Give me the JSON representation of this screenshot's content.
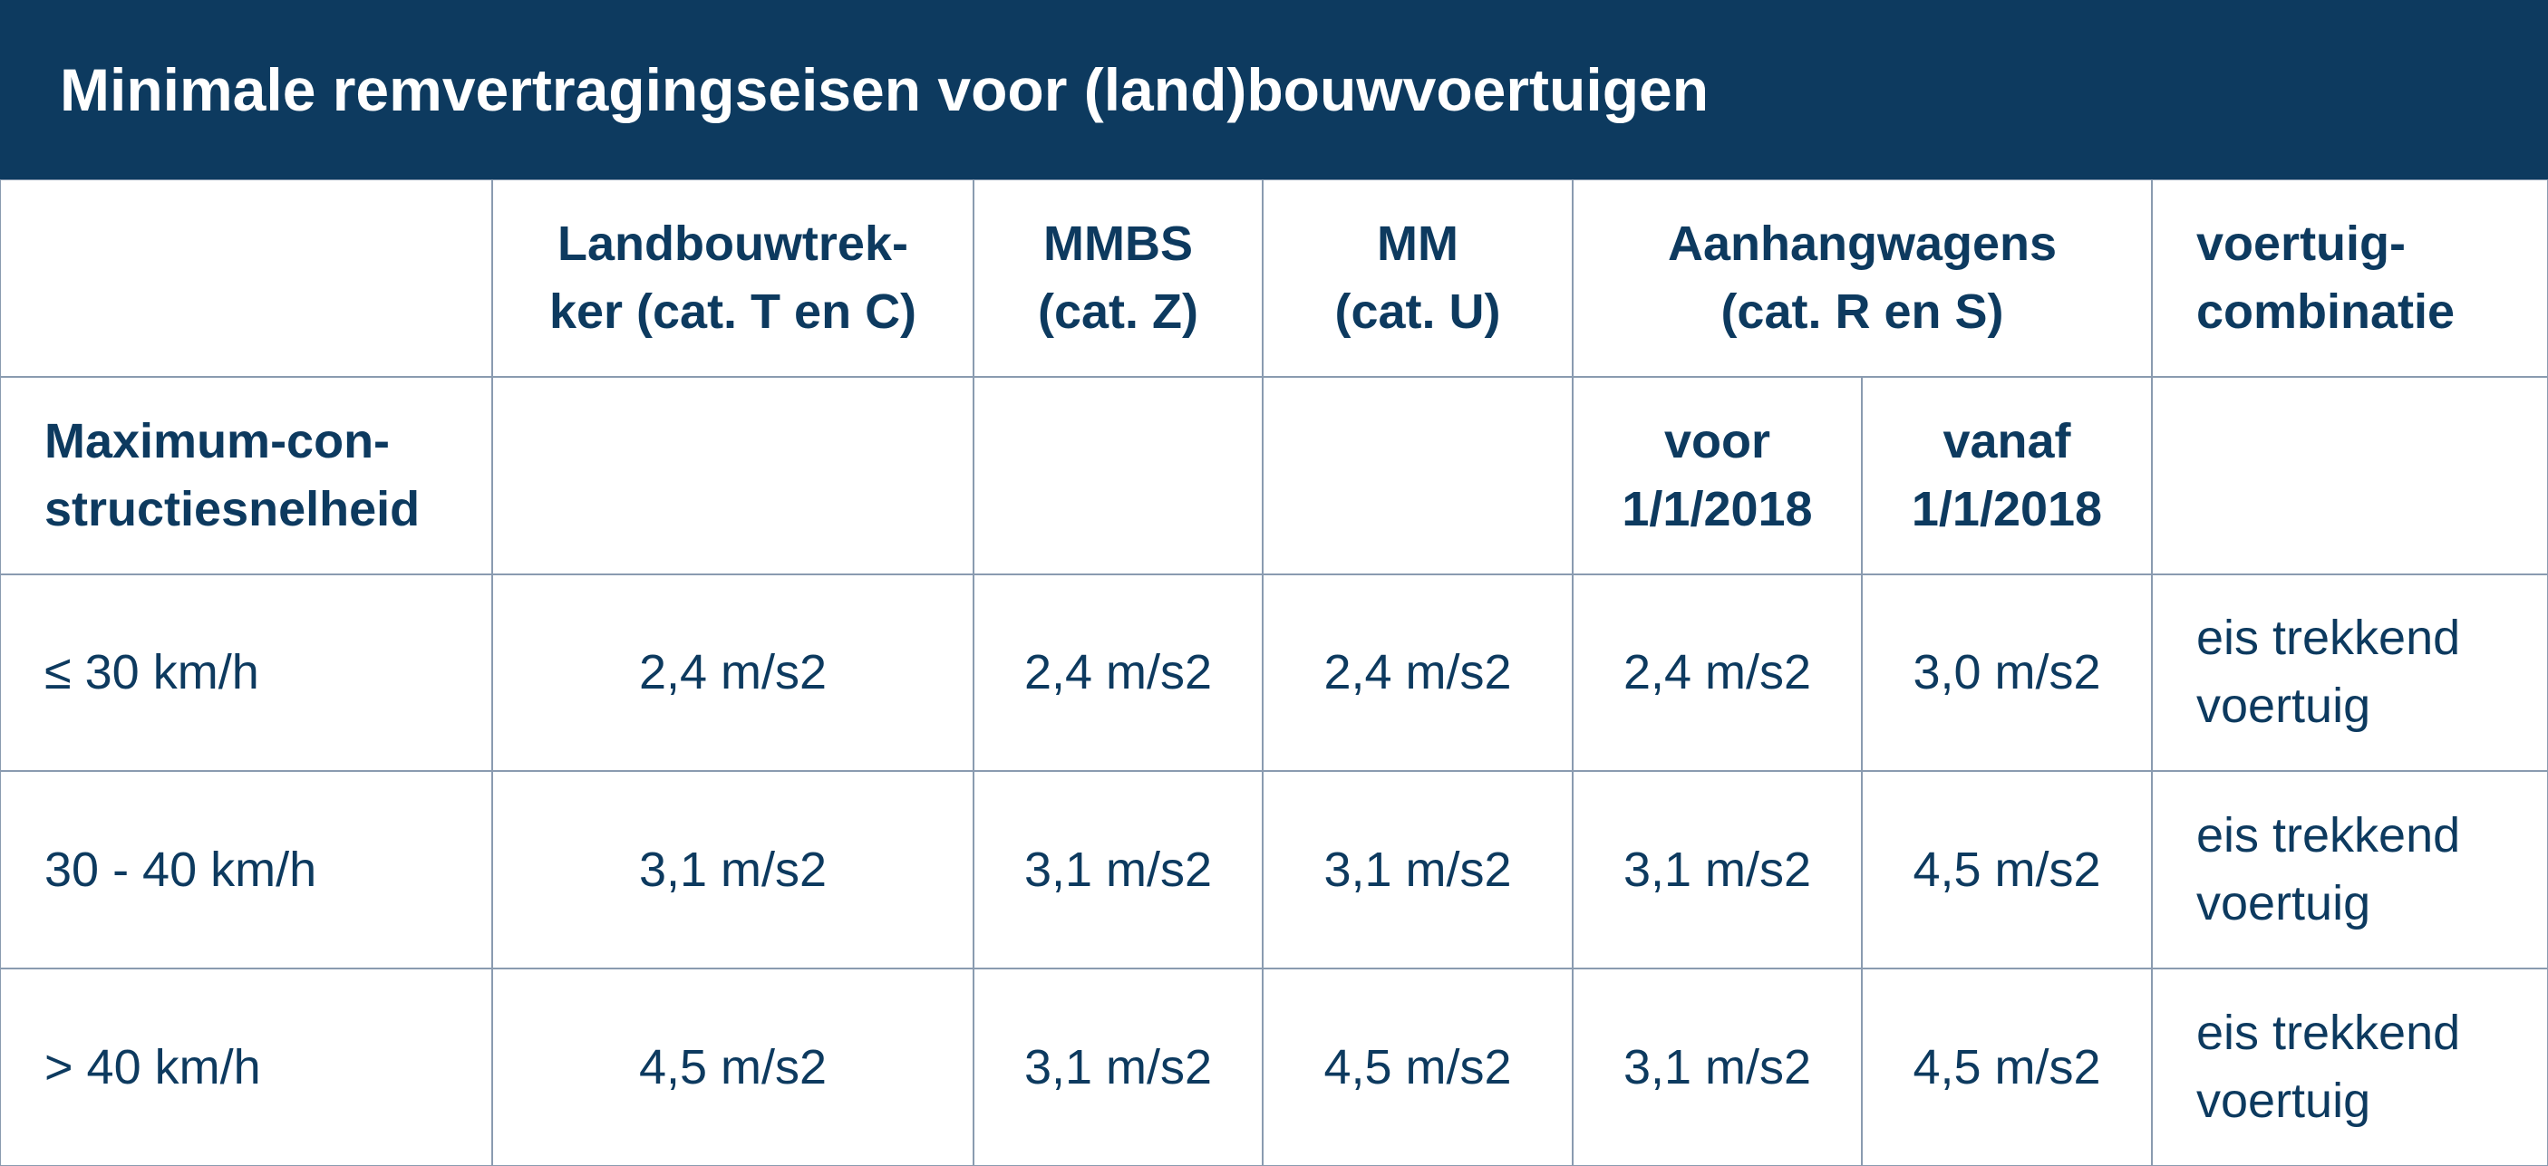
{
  "title": "Minimale remvertragingseisen voor (land)bouwvoertuigen",
  "header": {
    "vehicle_types": [
      "Landbouwtrek-\nker (cat. T en C)",
      "MMBS\n(cat. Z)",
      "MM\n(cat. U)",
      "Aanhangwagens\n(cat. R en S)",
      "voertuig-\ncombinatie"
    ]
  },
  "subheader": {
    "row_label": "Maximum-con-\nstructiesnelheid",
    "trailer_periods": [
      "voor\n1/1/2018",
      "vanaf\n1/1/2018"
    ]
  },
  "rows": [
    {
      "speed": "≤ 30 km/h",
      "values": [
        "2,4 m/s2",
        "2,4 m/s2",
        "2,4 m/s2",
        "2,4 m/s2",
        "3,0 m/s2",
        "eis trekkend\nvoertuig"
      ]
    },
    {
      "speed": "30 - 40 km/h",
      "values": [
        "3,1 m/s2",
        "3,1 m/s2",
        "3,1 m/s2",
        "3,1 m/s2",
        "4,5 m/s2",
        "eis trekkend\nvoertuig"
      ]
    },
    {
      "speed": "> 40 km/h",
      "values": [
        "4,5 m/s2",
        "3,1 m/s2",
        "4,5 m/s2",
        "3,1 m/s2",
        "4,5 m/s2",
        "eis trekkend\nvoertuig"
      ]
    }
  ]
}
